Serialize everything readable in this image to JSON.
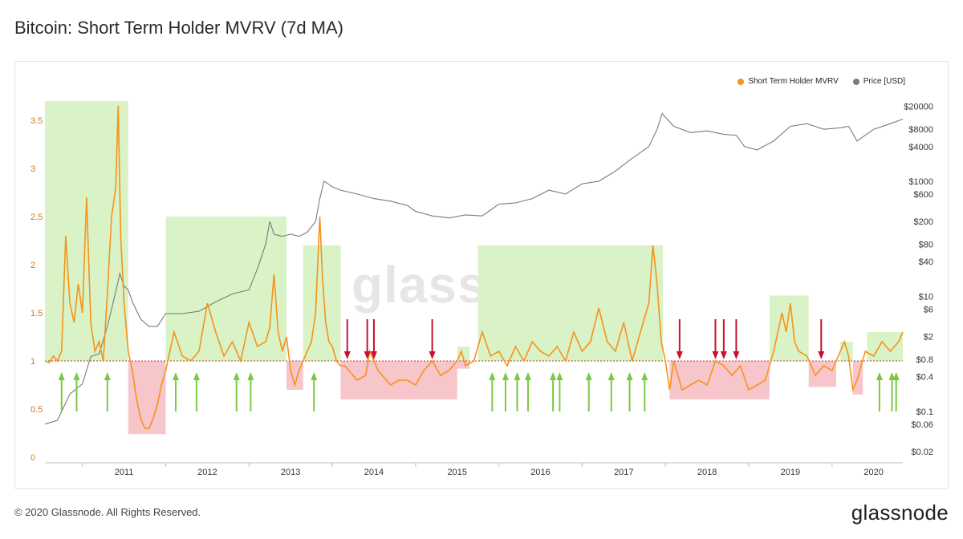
{
  "title": "Bitcoin: Short Term Holder MVRV (7d MA)",
  "footer": "© 2020 Glassnode. All Rights Reserved.",
  "brand": "glassnode",
  "watermark": "glassnode",
  "colors": {
    "mvrv": "#f7931a",
    "price": "#7a7a7a",
    "green_zone": "#d9f2c6",
    "red_zone": "#f6c6cb",
    "green_arrow": "#7ac943",
    "red_arrow": "#c8102e"
  },
  "legend": [
    {
      "label": "Short Term Holder MVRV",
      "color": "#f7931a"
    },
    {
      "label": "Price [USD]",
      "color": "#7a7a7a"
    }
  ],
  "chart_data": {
    "type": "line",
    "title": "Bitcoin: Short Term Holder MVRV (7d MA)",
    "x_range": [
      2010.55,
      2020.85
    ],
    "left_axis": {
      "ticks": [
        "0",
        "0.5",
        "1",
        "1.5",
        "2",
        "2.5",
        "3",
        "3.5"
      ],
      "tick_values": [
        0,
        0.5,
        1,
        1.5,
        2,
        2.5,
        3,
        3.5
      ],
      "range": [
        0,
        3.75
      ]
    },
    "right_axis": {
      "scale": "log",
      "ticks": [
        "$0.02",
        "$0.06",
        "$0.1",
        "$0.4",
        "$0.8",
        "$2",
        "$6",
        "$10",
        "$40",
        "$80",
        "$200",
        "$600",
        "$1000",
        "$4000",
        "$8000",
        "$20000"
      ],
      "tick_values": [
        0.02,
        0.06,
        0.1,
        0.4,
        0.8,
        2,
        6,
        10,
        40,
        80,
        200,
        600,
        1000,
        4000,
        8000,
        20000
      ],
      "range": [
        0.016,
        30000
      ]
    },
    "x_ticks": [
      "2011",
      "2012",
      "2013",
      "2014",
      "2015",
      "2016",
      "2017",
      "2018",
      "2019",
      "2020"
    ],
    "x_tick_values": [
      2011,
      2012,
      2013,
      2014,
      2015,
      2016,
      2017,
      2018,
      2019,
      2020
    ],
    "baseline": 1,
    "green_zones": [
      {
        "x0": 2010.55,
        "x1": 2011.55,
        "top": 3.7
      },
      {
        "x0": 2012.0,
        "x1": 2013.45,
        "top": 2.5
      },
      {
        "x0": 2013.65,
        "x1": 2014.1,
        "top": 2.2
      },
      {
        "x0": 2015.5,
        "x1": 2015.65,
        "top": 1.15
      },
      {
        "x0": 2015.75,
        "x1": 2017.97,
        "top": 2.2
      },
      {
        "x0": 2019.25,
        "x1": 2019.72,
        "top": 1.68
      },
      {
        "x0": 2020.1,
        "x1": 2020.25,
        "top": 1.2
      },
      {
        "x0": 2020.42,
        "x1": 2020.85,
        "top": 1.3
      }
    ],
    "red_zones": [
      {
        "x0": 2011.55,
        "x1": 2012.0,
        "bottom": 0.24
      },
      {
        "x0": 2013.45,
        "x1": 2013.65,
        "bottom": 0.7
      },
      {
        "x0": 2014.1,
        "x1": 2015.5,
        "bottom": 0.6
      },
      {
        "x0": 2015.5,
        "x1": 2015.65,
        "bottom": 0.92
      },
      {
        "x0": 2018.05,
        "x1": 2019.25,
        "bottom": 0.6
      },
      {
        "x0": 2019.72,
        "x1": 2020.05,
        "bottom": 0.73
      },
      {
        "x0": 2020.25,
        "x1": 2020.37,
        "bottom": 0.65
      }
    ],
    "green_arrows": [
      2010.75,
      2010.93,
      2011.3,
      2012.12,
      2012.37,
      2012.85,
      2013.02,
      2013.78,
      2015.92,
      2016.08,
      2016.22,
      2016.35,
      2016.65,
      2016.73,
      2017.08,
      2017.35,
      2017.57,
      2017.75,
      2020.57,
      2020.72,
      2020.77
    ],
    "red_arrows": [
      2014.18,
      2014.42,
      2014.5,
      2015.2,
      2018.17,
      2018.6,
      2018.7,
      2018.85,
      2019.87
    ],
    "series": [
      {
        "name": "Short Term Holder MVRV",
        "axis": "left",
        "x": [
          2010.55,
          2010.6,
          2010.65,
          2010.7,
          2010.75,
          2010.8,
          2010.85,
          2010.9,
          2010.95,
          2011.0,
          2011.05,
          2011.1,
          2011.15,
          2011.2,
          2011.25,
          2011.3,
          2011.35,
          2011.4,
          2011.43,
          2011.46,
          2011.5,
          2011.55,
          2011.6,
          2011.65,
          2011.7,
          2011.75,
          2011.8,
          2011.85,
          2011.9,
          2011.95,
          2012.0,
          2012.1,
          2012.2,
          2012.3,
          2012.4,
          2012.5,
          2012.6,
          2012.7,
          2012.8,
          2012.9,
          2013.0,
          2013.1,
          2013.2,
          2013.25,
          2013.3,
          2013.35,
          2013.4,
          2013.45,
          2013.5,
          2013.55,
          2013.6,
          2013.7,
          2013.75,
          2013.8,
          2013.85,
          2013.88,
          2013.92,
          2013.96,
          2014.0,
          2014.05,
          2014.1,
          2014.15,
          2014.2,
          2014.3,
          2014.4,
          2014.45,
          2014.5,
          2014.55,
          2014.6,
          2014.7,
          2014.8,
          2014.9,
          2015.0,
          2015.1,
          2015.2,
          2015.3,
          2015.4,
          2015.5,
          2015.55,
          2015.6,
          2015.7,
          2015.8,
          2015.9,
          2016.0,
          2016.1,
          2016.2,
          2016.3,
          2016.4,
          2016.5,
          2016.6,
          2016.7,
          2016.8,
          2016.9,
          2017.0,
          2017.1,
          2017.2,
          2017.3,
          2017.4,
          2017.5,
          2017.6,
          2017.7,
          2017.8,
          2017.85,
          2017.9,
          2017.95,
          2018.0,
          2018.05,
          2018.1,
          2018.2,
          2018.3,
          2018.4,
          2018.5,
          2018.6,
          2018.7,
          2018.8,
          2018.9,
          2019.0,
          2019.1,
          2019.2,
          2019.3,
          2019.4,
          2019.45,
          2019.5,
          2019.55,
          2019.6,
          2019.7,
          2019.8,
          2019.9,
          2020.0,
          2020.1,
          2020.15,
          2020.2,
          2020.25,
          2020.3,
          2020.4,
          2020.5,
          2020.6,
          2020.7,
          2020.8,
          2020.85
        ],
        "y": [
          1.0,
          0.98,
          1.05,
          1.0,
          1.1,
          2.3,
          1.6,
          1.4,
          1.8,
          1.5,
          2.7,
          1.4,
          1.1,
          1.2,
          1.0,
          1.7,
          2.5,
          2.8,
          3.65,
          2.3,
          1.6,
          1.1,
          0.9,
          0.6,
          0.4,
          0.3,
          0.3,
          0.4,
          0.55,
          0.75,
          0.9,
          1.3,
          1.05,
          1.0,
          1.1,
          1.6,
          1.3,
          1.05,
          1.2,
          1.0,
          1.4,
          1.15,
          1.2,
          1.35,
          1.9,
          1.3,
          1.1,
          1.25,
          0.9,
          0.75,
          0.9,
          1.1,
          1.2,
          1.5,
          2.5,
          1.9,
          1.4,
          1.2,
          1.15,
          1.0,
          0.95,
          0.95,
          0.9,
          0.8,
          0.85,
          1.1,
          1.0,
          0.9,
          0.85,
          0.75,
          0.8,
          0.8,
          0.75,
          0.9,
          1.0,
          0.85,
          0.9,
          1.0,
          1.1,
          0.95,
          1.0,
          1.3,
          1.05,
          1.1,
          0.95,
          1.15,
          1.0,
          1.2,
          1.1,
          1.05,
          1.15,
          1.0,
          1.3,
          1.1,
          1.2,
          1.55,
          1.2,
          1.1,
          1.4,
          1.0,
          1.3,
          1.6,
          2.2,
          1.8,
          1.2,
          1.0,
          0.7,
          1.0,
          0.7,
          0.75,
          0.8,
          0.75,
          1.0,
          0.95,
          0.85,
          0.95,
          0.7,
          0.75,
          0.8,
          1.1,
          1.5,
          1.3,
          1.6,
          1.2,
          1.1,
          1.05,
          0.85,
          0.95,
          0.9,
          1.1,
          1.2,
          1.05,
          0.7,
          0.8,
          1.1,
          1.05,
          1.2,
          1.1,
          1.2,
          1.3
        ]
      },
      {
        "name": "Price [USD]",
        "axis": "right",
        "x": [
          2010.55,
          2010.7,
          2010.85,
          2011.0,
          2011.1,
          2011.2,
          2011.3,
          2011.4,
          2011.45,
          2011.5,
          2011.55,
          2011.6,
          2011.7,
          2011.8,
          2011.9,
          2012.0,
          2012.2,
          2012.4,
          2012.6,
          2012.8,
          2013.0,
          2013.1,
          2013.2,
          2013.25,
          2013.3,
          2013.4,
          2013.5,
          2013.6,
          2013.7,
          2013.8,
          2013.85,
          2013.9,
          2013.95,
          2014.0,
          2014.1,
          2014.3,
          2014.5,
          2014.7,
          2014.9,
          2015.0,
          2015.2,
          2015.4,
          2015.6,
          2015.8,
          2016.0,
          2016.2,
          2016.4,
          2016.6,
          2016.8,
          2017.0,
          2017.2,
          2017.4,
          2017.6,
          2017.8,
          2017.9,
          2017.96,
          2018.0,
          2018.1,
          2018.3,
          2018.5,
          2018.7,
          2018.85,
          2018.95,
          2019.1,
          2019.3,
          2019.5,
          2019.7,
          2019.9,
          2020.1,
          2020.2,
          2020.3,
          2020.5,
          2020.7,
          2020.85
        ],
        "y": [
          0.06,
          0.07,
          0.2,
          0.3,
          0.9,
          1.0,
          3,
          12,
          25,
          15,
          13,
          8,
          4,
          3,
          3,
          5,
          5,
          5.5,
          8,
          11,
          13,
          30,
          80,
          200,
          120,
          110,
          120,
          110,
          130,
          200,
          500,
          1000,
          900,
          800,
          700,
          600,
          500,
          450,
          380,
          300,
          250,
          230,
          260,
          250,
          400,
          420,
          500,
          700,
          600,
          900,
          1000,
          1500,
          2500,
          4000,
          8000,
          15000,
          13000,
          9000,
          7000,
          7500,
          6500,
          6300,
          4000,
          3500,
          5000,
          9000,
          10000,
          8000,
          8500,
          9000,
          5000,
          8000,
          10000,
          12000
        ]
      }
    ]
  }
}
